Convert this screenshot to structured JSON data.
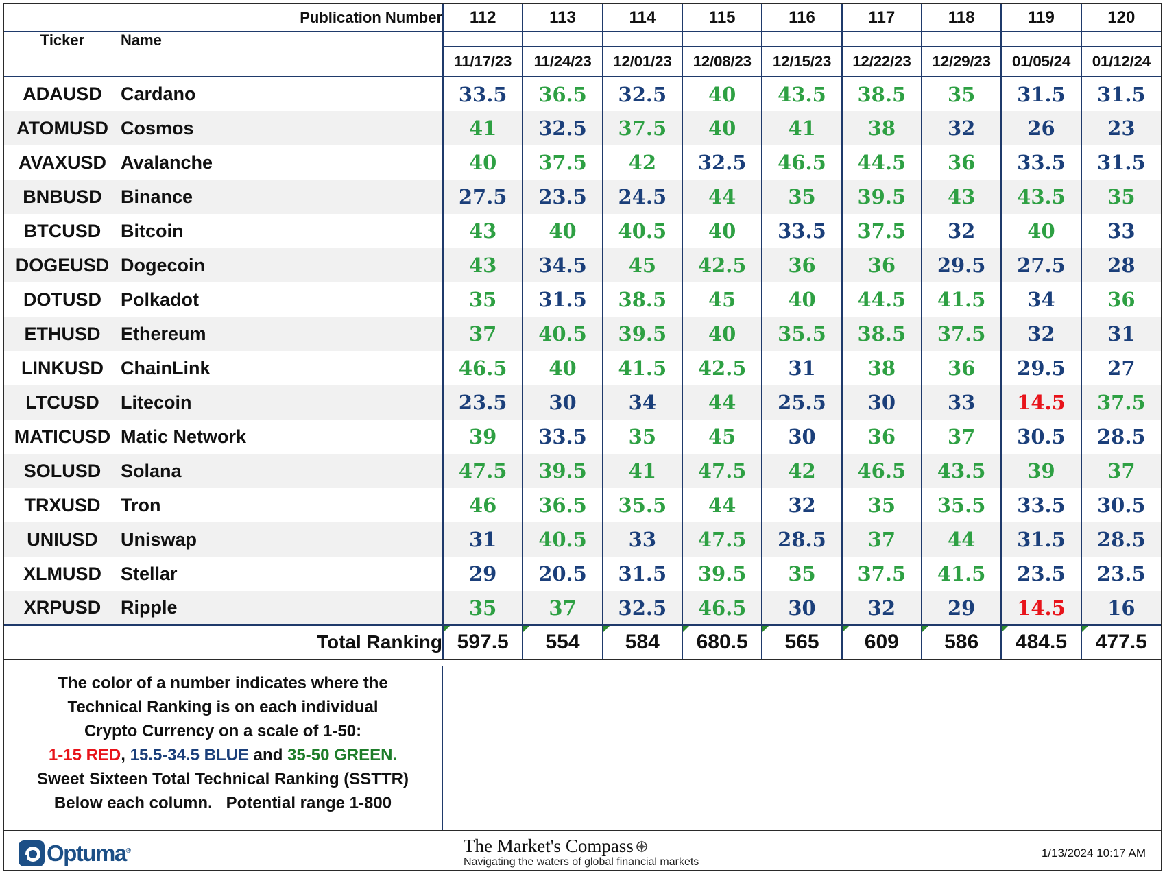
{
  "header": {
    "publication_label": "Publication Number",
    "ticker_label": "Ticker",
    "name_label": "Name",
    "publications": [
      "112",
      "113",
      "114",
      "115",
      "116",
      "117",
      "118",
      "119",
      "120"
    ],
    "dates": [
      "11/17/23",
      "11/24/23",
      "12/01/23",
      "12/08/23",
      "12/15/23",
      "12/22/23",
      "12/29/23",
      "01/05/24",
      "01/12/24"
    ]
  },
  "colors": {
    "red": "#e8141b",
    "blue": "#1b3f7a",
    "green": "#2ea043"
  },
  "rows": [
    {
      "ticker": "ADAUSD",
      "name": "Cardano",
      "values": [
        "33.5",
        "36.5",
        "32.5",
        "40",
        "43.5",
        "38.5",
        "35",
        "31.5",
        "31.5"
      ]
    },
    {
      "ticker": "ATOMUSD",
      "name": "Cosmos",
      "values": [
        "41",
        "32.5",
        "37.5",
        "40",
        "41",
        "38",
        "32",
        "26",
        "23"
      ]
    },
    {
      "ticker": "AVAXUSD",
      "name": "Avalanche",
      "values": [
        "40",
        "37.5",
        "42",
        "32.5",
        "46.5",
        "44.5",
        "36",
        "33.5",
        "31.5"
      ]
    },
    {
      "ticker": "BNBUSD",
      "name": "Binance",
      "values": [
        "27.5",
        "23.5",
        "24.5",
        "44",
        "35",
        "39.5",
        "43",
        "43.5",
        "35"
      ]
    },
    {
      "ticker": "BTCUSD",
      "name": "Bitcoin",
      "values": [
        "43",
        "40",
        "40.5",
        "40",
        "33.5",
        "37.5",
        "32",
        "40",
        "33"
      ]
    },
    {
      "ticker": "DOGEUSD",
      "name": "Dogecoin",
      "values": [
        "43",
        "34.5",
        "45",
        "42.5",
        "36",
        "36",
        "29.5",
        "27.5",
        "28"
      ]
    },
    {
      "ticker": "DOTUSD",
      "name": "Polkadot",
      "values": [
        "35",
        "31.5",
        "38.5",
        "45",
        "40",
        "44.5",
        "41.5",
        "34",
        "36"
      ]
    },
    {
      "ticker": "ETHUSD",
      "name": "Ethereum",
      "values": [
        "37",
        "40.5",
        "39.5",
        "40",
        "35.5",
        "38.5",
        "37.5",
        "32",
        "31"
      ]
    },
    {
      "ticker": "LINKUSD",
      "name": "ChainLink",
      "values": [
        "46.5",
        "40",
        "41.5",
        "42.5",
        "31",
        "38",
        "36",
        "29.5",
        "27"
      ]
    },
    {
      "ticker": "LTCUSD",
      "name": "Litecoin",
      "values": [
        "23.5",
        "30",
        "34",
        "44",
        "25.5",
        "30",
        "33",
        "14.5",
        "37.5"
      ]
    },
    {
      "ticker": "MATICUSD",
      "name": "Matic Network",
      "values": [
        "39",
        "33.5",
        "35",
        "45",
        "30",
        "36",
        "37",
        "30.5",
        "28.5"
      ]
    },
    {
      "ticker": "SOLUSD",
      "name": "Solana",
      "values": [
        "47.5",
        "39.5",
        "41",
        "47.5",
        "42",
        "46.5",
        "43.5",
        "39",
        "37"
      ]
    },
    {
      "ticker": "TRXUSD",
      "name": "Tron",
      "values": [
        "46",
        "36.5",
        "35.5",
        "44",
        "32",
        "35",
        "35.5",
        "33.5",
        "30.5"
      ]
    },
    {
      "ticker": "UNIUSD",
      "name": "Uniswap",
      "values": [
        "31",
        "40.5",
        "33",
        "47.5",
        "28.5",
        "37",
        "44",
        "31.5",
        "28.5"
      ]
    },
    {
      "ticker": "XLMUSD",
      "name": "Stellar",
      "values": [
        "29",
        "20.5",
        "31.5",
        "39.5",
        "35",
        "37.5",
        "41.5",
        "23.5",
        "23.5"
      ]
    },
    {
      "ticker": "XRPUSD",
      "name": "Ripple",
      "values": [
        "35",
        "37",
        "32.5",
        "46.5",
        "30",
        "32",
        "29",
        "14.5",
        "16"
      ]
    }
  ],
  "totals": {
    "label": "Total Ranking",
    "values": [
      "597.5",
      "554",
      "584",
      "680.5",
      "565",
      "609",
      "586",
      "484.5",
      "477.5"
    ]
  },
  "legend": {
    "line1": "The color of a number indicates where the",
    "line2": "Technical Ranking is on each individual",
    "line3": "Crypto Currency on a scale of 1-50:",
    "red_text": "1-15 RED",
    "sep1": ", ",
    "blue_text": "15.5-34.5 BLUE",
    "sep2": " and ",
    "green_text": "35-50 GREEN.",
    "line5": "Sweet Sixteen Total Technical Ranking (SSTTR)",
    "line6": "Below each column.   Potential range 1-800"
  },
  "footer": {
    "logo_text": "Optuma",
    "logo_mark": "®",
    "brand_title": "The Market's Compass",
    "brand_tagline": "Navigating the waters of global financial markets",
    "timestamp": "1/13/2024 10:17 AM"
  }
}
